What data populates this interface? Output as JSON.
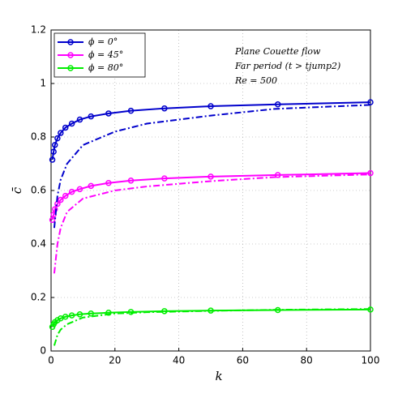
{
  "chart_data": {
    "type": "line",
    "xlabel": "k",
    "ylabel": "c̄",
    "xlim": [
      0,
      100
    ],
    "ylim": [
      0,
      1.2
    ],
    "xticks": [
      0,
      20,
      40,
      60,
      80,
      100
    ],
    "yticks": [
      0,
      0.2,
      0.4,
      0.6,
      0.8,
      1,
      1.2
    ],
    "grid": true,
    "legend": "upper left",
    "annotations": [
      "Plane Couette flow",
      "Far period (t > tjump2)",
      "Re = 500"
    ],
    "series": [
      {
        "name": "ϕ = 0°",
        "color": "#0000cc",
        "style": "solid-circle",
        "x": [
          0.4,
          0.8,
          1.2,
          2,
          3,
          4.5,
          6.5,
          9,
          12.5,
          18,
          25,
          35.5,
          50,
          71,
          100
        ],
        "values": [
          0.715,
          0.745,
          0.77,
          0.795,
          0.815,
          0.835,
          0.85,
          0.865,
          0.877,
          0.888,
          0.898,
          0.907,
          0.915,
          0.922,
          0.93
        ]
      },
      {
        "name": "ϕ = 45°",
        "color": "#ff00ff",
        "style": "solid-circle",
        "x": [
          0.4,
          0.8,
          1.2,
          2,
          3,
          4.5,
          6.5,
          9,
          12.5,
          18,
          25,
          35.5,
          50,
          71,
          100
        ],
        "values": [
          0.49,
          0.51,
          0.53,
          0.55,
          0.565,
          0.58,
          0.595,
          0.605,
          0.617,
          0.628,
          0.637,
          0.645,
          0.652,
          0.658,
          0.665
        ]
      },
      {
        "name": "ϕ = 80°",
        "color": "#00ee00",
        "style": "solid-circle",
        "x": [
          0.4,
          0.8,
          1.2,
          2,
          3,
          4.5,
          6.5,
          9,
          12.5,
          18,
          25,
          35.5,
          50,
          71,
          100
        ],
        "values": [
          0.09,
          0.1,
          0.108,
          0.115,
          0.122,
          0.128,
          0.133,
          0.137,
          0.14,
          0.143,
          0.146,
          0.149,
          0.151,
          0.153,
          0.155
        ]
      },
      {
        "color": "#0000cc",
        "style": "dashdot",
        "x": [
          1,
          2,
          3,
          5,
          10,
          20,
          30,
          50,
          70,
          100
        ],
        "values": [
          0.46,
          0.58,
          0.64,
          0.7,
          0.77,
          0.82,
          0.85,
          0.88,
          0.905,
          0.92
        ]
      },
      {
        "color": "#ff00ff",
        "style": "dashdot",
        "x": [
          1,
          2,
          3,
          5,
          10,
          20,
          30,
          50,
          70,
          100
        ],
        "values": [
          0.29,
          0.4,
          0.46,
          0.52,
          0.57,
          0.6,
          0.615,
          0.635,
          0.65,
          0.66
        ]
      },
      {
        "color": "#00ee00",
        "style": "dashdot",
        "x": [
          1,
          2,
          3,
          5,
          10,
          20,
          30,
          50,
          70,
          100
        ],
        "values": [
          0.02,
          0.06,
          0.08,
          0.1,
          0.125,
          0.14,
          0.145,
          0.15,
          0.154,
          0.157
        ]
      }
    ]
  }
}
